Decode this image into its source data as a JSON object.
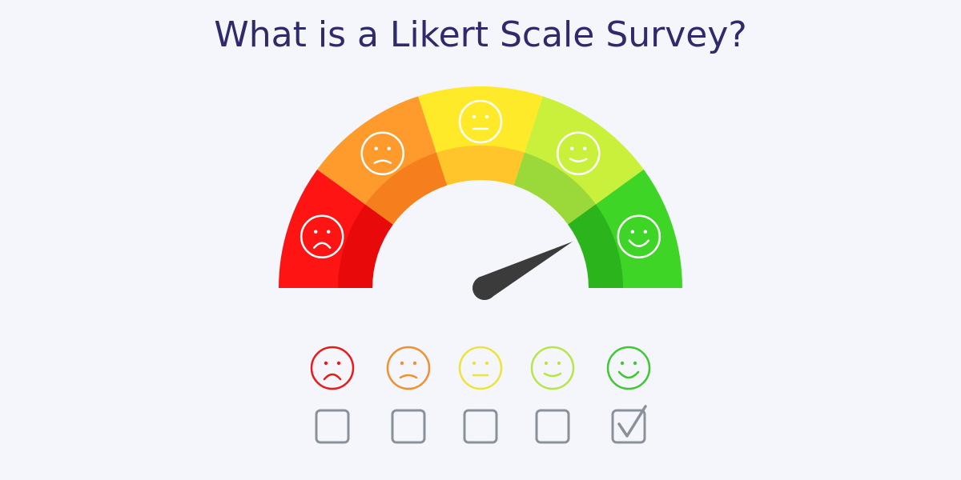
{
  "header": {
    "title": "What is a Likert Scale Survey?"
  }
}
